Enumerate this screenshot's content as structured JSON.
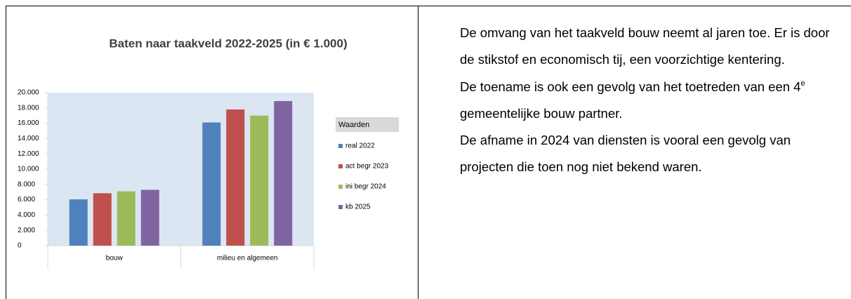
{
  "chart_data": {
    "type": "bar",
    "title": "Baten naar taakveld 2022-2025 (in € 1.000)",
    "categories": [
      "bouw",
      "milieu en algemeen"
    ],
    "legend_title": "Waarden",
    "series": [
      {
        "name": "real 2022",
        "color": "#4f81bd",
        "values": [
          6050,
          16100
        ]
      },
      {
        "name": "act begr 2023",
        "color": "#c0504d",
        "values": [
          6850,
          17800
        ]
      },
      {
        "name": "ini begr 2024",
        "color": "#9bbb59",
        "values": [
          7100,
          17000
        ]
      },
      {
        "name": "kb 2025",
        "color": "#8064a2",
        "values": [
          7300,
          18900
        ]
      }
    ],
    "ylim": [
      0,
      20000
    ],
    "yticks": [
      0,
      {
        "value": 2000,
        "label": "2.000"
      },
      {
        "value": 4000,
        "label": "4.000"
      },
      {
        "value": 6000,
        "label": "6.000"
      },
      {
        "value": 8000,
        "label": "8.000"
      },
      {
        "value": 10000,
        "label": "10.000"
      },
      {
        "value": 12000,
        "label": "12.000"
      },
      {
        "value": 14000,
        "label": "14.000"
      },
      {
        "value": 16000,
        "label": "16.000"
      },
      {
        "value": 18000,
        "label": "18.000"
      },
      {
        "value": 20000,
        "label": "20.000"
      }
    ],
    "legend": "right"
  },
  "text": {
    "paragraphs": [
      "De omvang van het taakveld bouw neemt al jaren toe. Er is door de stikstof en economisch tij, een voorzichtige kentering.",
      [
        "De toename is ook een gevolg van het toetreden van een 4",
        "e",
        " gemeentelijke bouw partner."
      ],
      "De afname in 2024 van diensten is vooral een gevolg van projecten die toen nog niet bekend waren."
    ]
  }
}
